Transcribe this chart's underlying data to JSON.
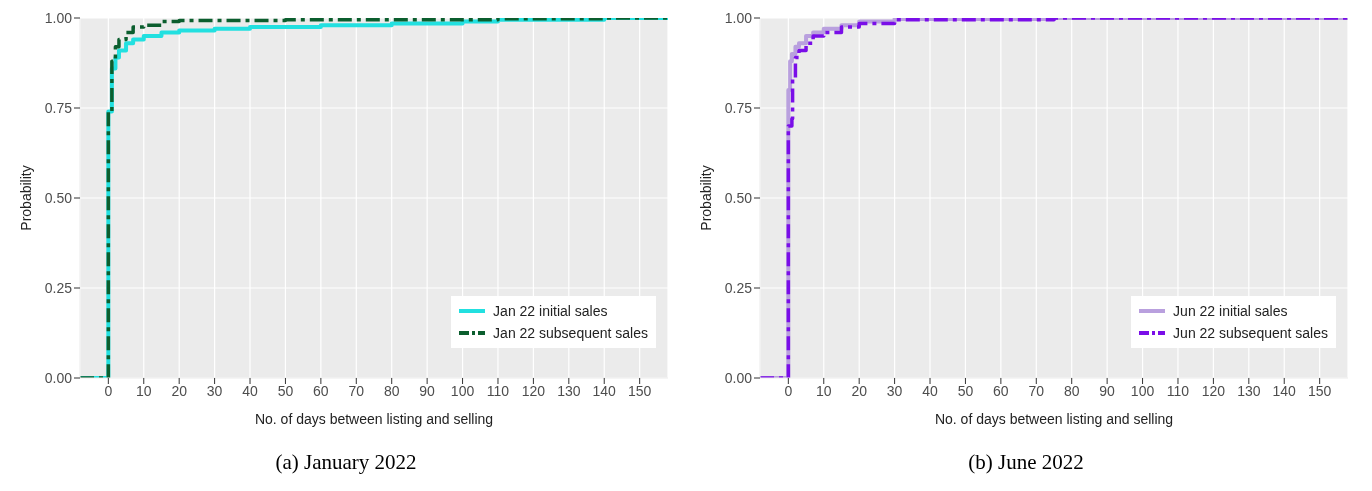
{
  "chart_data": [
    {
      "type": "step",
      "title": "(a) January 2022",
      "xlabel": "No. of days between listing and selling",
      "ylabel": "Probability",
      "xlim": [
        -8,
        158
      ],
      "xticks": [
        0,
        10,
        20,
        30,
        40,
        50,
        60,
        70,
        80,
        90,
        100,
        110,
        120,
        130,
        140,
        150
      ],
      "ylim": [
        0,
        1
      ],
      "yticks": [
        {
          "value": 0,
          "label": "0.00"
        },
        {
          "value": 0.25,
          "label": "0.25"
        },
        {
          "value": 0.5,
          "label": "0.50"
        },
        {
          "value": 0.75,
          "label": "0.75"
        },
        {
          "value": 1,
          "label": "1.00"
        }
      ],
      "grid": true,
      "legend": "bottom right",
      "series": [
        {
          "name": "Jan 22 initial sales",
          "color": "#22e0e0",
          "line_style": "solid",
          "x": [
            -8,
            0,
            1,
            2,
            3,
            5,
            7,
            10,
            15,
            20,
            30,
            40,
            60,
            80,
            100,
            110,
            140,
            158
          ],
          "values": [
            0,
            0.74,
            0.86,
            0.89,
            0.91,
            0.93,
            0.94,
            0.95,
            0.96,
            0.965,
            0.97,
            0.975,
            0.98,
            0.985,
            0.99,
            0.995,
            1,
            1
          ]
        },
        {
          "name": "Jan 22 subsequent sales",
          "color": "#0b5e2e",
          "line_style": "dashed",
          "x": [
            -8,
            0,
            1,
            2,
            3,
            5,
            7,
            10,
            15,
            20,
            50,
            110,
            140,
            158
          ],
          "values": [
            0,
            0.74,
            0.88,
            0.92,
            0.94,
            0.96,
            0.975,
            0.98,
            0.99,
            0.993,
            0.995,
            0.998,
            1,
            1
          ]
        }
      ]
    },
    {
      "type": "step",
      "title": "(b) June 2022",
      "xlabel": "No. of days between listing and selling",
      "ylabel": "Probability",
      "xlim": [
        -8,
        158
      ],
      "xticks": [
        0,
        10,
        20,
        30,
        40,
        50,
        60,
        70,
        80,
        90,
        100,
        110,
        120,
        130,
        140,
        150
      ],
      "ylim": [
        0,
        1
      ],
      "yticks": [
        {
          "value": 0,
          "label": "0.00"
        },
        {
          "value": 0.25,
          "label": "0.25"
        },
        {
          "value": 0.5,
          "label": "0.50"
        },
        {
          "value": 0.75,
          "label": "0.75"
        },
        {
          "value": 1,
          "label": "1.00"
        }
      ],
      "grid": true,
      "legend": "bottom right",
      "series": [
        {
          "name": "Jun 22 initial sales",
          "color": "#b9a0de",
          "line_style": "solid",
          "x": [
            -8,
            0,
            0.5,
            1,
            2,
            3,
            5,
            7,
            10,
            15,
            20,
            30,
            75,
            158
          ],
          "values": [
            0,
            0.8,
            0.88,
            0.9,
            0.92,
            0.93,
            0.95,
            0.96,
            0.97,
            0.98,
            0.99,
            0.997,
            1,
            1
          ]
        },
        {
          "name": "Jun 22 subsequent sales",
          "color": "#7a0ee8",
          "line_style": "dashed",
          "x": [
            -8,
            0,
            1,
            1.2,
            2,
            3,
            5,
            7,
            10,
            15,
            20,
            30,
            75,
            158
          ],
          "values": [
            0,
            0.7,
            0.72,
            0.83,
            0.89,
            0.91,
            0.93,
            0.95,
            0.96,
            0.975,
            0.985,
            0.995,
            1,
            1
          ]
        }
      ]
    }
  ]
}
